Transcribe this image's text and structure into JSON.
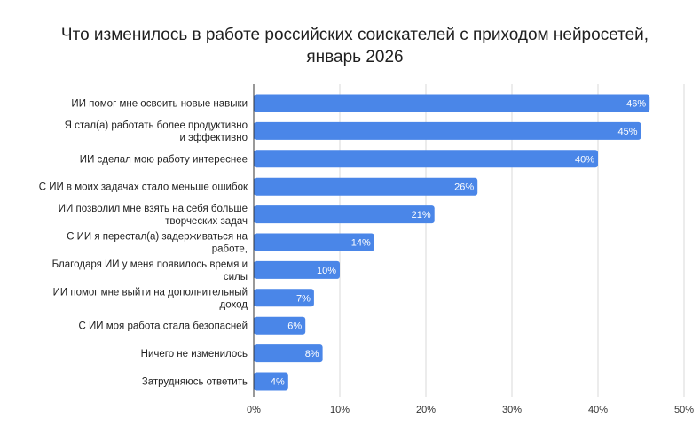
{
  "chart_data": {
    "type": "bar",
    "orientation": "horizontal",
    "title": [
      "Что изменилось в работе российских соискателей с приходом нейросетей,",
      "январь 2026"
    ],
    "categories": [
      [
        "ИИ помог мне освоить новые навыки"
      ],
      [
        "Я стал(а) работать более продуктивно",
        "и эффективно"
      ],
      [
        "ИИ сделал мою работу интереснее"
      ],
      [
        "С ИИ в моих задачах стало меньше ошибок"
      ],
      [
        "ИИ позволил мне взять на себя больше",
        "творческих задач"
      ],
      [
        "С ИИ я перестал(а) задерживаться на",
        "работе,"
      ],
      [
        "Благодаря ИИ у меня появилось время и",
        "силы"
      ],
      [
        "ИИ помог мне выйти на дополнительный",
        "доход"
      ],
      [
        "С ИИ моя работа стала безопасней"
      ],
      [
        "Ничего не изменилось"
      ],
      [
        "Затрудняюсь ответить"
      ]
    ],
    "values": [
      46,
      45,
      40,
      26,
      21,
      14,
      10,
      7,
      6,
      8,
      4
    ],
    "data_labels": [
      "46%",
      "45%",
      "40%",
      "26%",
      "21%",
      "14%",
      "10%",
      "7%",
      "6%",
      "8%",
      "4%"
    ],
    "xlim": [
      0,
      50
    ],
    "xticks": [
      0,
      10,
      20,
      30,
      40,
      50
    ],
    "xtick_labels": [
      "0%",
      "10%",
      "20%",
      "30%",
      "40%",
      "50%"
    ],
    "grid": true,
    "xlabel": "",
    "ylabel": "",
    "bar_color": "#4a86e8",
    "grid_color": "#d9d9d9"
  }
}
